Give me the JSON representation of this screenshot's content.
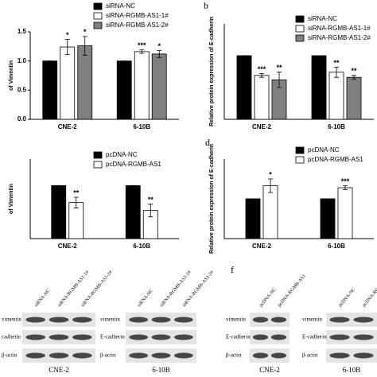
{
  "chart_data": [
    {
      "type": "bar",
      "ylabel": "of Vimentin",
      "categories": [
        "CNE-2",
        "6-10B"
      ],
      "ylim": [
        0,
        1.5
      ],
      "yticks": [
        {
          "value": 0,
          "label": "0.0"
        },
        {
          "value": 0.5,
          "label": "0.5"
        },
        {
          "value": 1,
          "label": "1.0"
        },
        {
          "value": 1.5,
          "label": "1.5"
        }
      ],
      "series": [
        {
          "name": "siRNA-NC",
          "color": "#000000",
          "values": [
            1,
            1
          ],
          "errors": [
            0,
            0
          ],
          "significance": [
            null,
            null
          ]
        },
        {
          "name": "siRNA-RGMB-AS1-1#",
          "color": "#ffffff",
          "values": [
            1.24,
            1.16
          ],
          "errors": [
            0.13,
            0.03
          ],
          "significance": [
            "*",
            "***"
          ]
        },
        {
          "name": "siRNA-RGMB-AS1-2#",
          "color": "#808080",
          "values": [
            1.26,
            1.12
          ],
          "errors": [
            0.16,
            0.06
          ],
          "significance": [
            "*",
            "*"
          ]
        }
      ]
    },
    {
      "type": "bar",
      "panel_label": "b",
      "ylabel": "Relative protein expression of E-cadherin",
      "categories": [
        "CNE-2",
        "6-10B"
      ],
      "ylim": [
        0,
        1.5
      ],
      "series": [
        {
          "name": "siRNA-NC",
          "color": "#000000",
          "values": [
            1,
            1
          ],
          "errors": [
            0,
            0
          ],
          "significance": [
            null,
            null
          ]
        },
        {
          "name": "siRNA-RGMB-AS1-1#",
          "color": "#ffffff",
          "values": [
            0.69,
            0.74
          ],
          "errors": [
            0.03,
            0.08
          ],
          "significance": [
            "***",
            "**"
          ]
        },
        {
          "name": "siRNA-RGMB-AS1-2#",
          "color": "#808080",
          "values": [
            0.62,
            0.66
          ],
          "errors": [
            0.12,
            0.03
          ],
          "significance": [
            "**",
            "**"
          ]
        }
      ]
    },
    {
      "type": "bar",
      "ylabel": "of Vimentin",
      "categories": [
        "CNE-2",
        "6-10B"
      ],
      "ylim": [
        0,
        1.5
      ],
      "series": [
        {
          "name": "pcDNA-NC",
          "color": "#000000",
          "values": [
            1,
            1
          ],
          "errors": [
            0,
            0
          ],
          "significance": [
            null,
            null
          ]
        },
        {
          "name": "pcDNA-RGMB-AS1",
          "color": "#ffffff",
          "values": [
            0.68,
            0.53
          ],
          "errors": [
            0.1,
            0.12
          ],
          "significance": [
            "**",
            "**"
          ]
        }
      ]
    },
    {
      "type": "bar",
      "panel_label": "d",
      "ylabel": "Relative protein expression of E-cadherin",
      "categories": [
        "CNE-2",
        "6-10B"
      ],
      "ylim": [
        0,
        2
      ],
      "series": [
        {
          "name": "pcDNA-NC",
          "color": "#000000",
          "values": [
            1,
            1
          ],
          "errors": [
            0,
            0
          ],
          "significance": [
            null,
            null
          ]
        },
        {
          "name": "pcDNA-RGMB-AS1",
          "color": "#ffffff",
          "values": [
            1.33,
            1.28
          ],
          "errors": [
            0.17,
            0.05
          ],
          "significance": [
            "*",
            "***"
          ]
        }
      ]
    }
  ],
  "blots": [
    {
      "groups": [
        {
          "name": "CNE-2",
          "columns": [
            "siRNA-NC",
            "siRNA-RGMB-AS1-1#",
            "siRNA-RGMB-AS1-2#"
          ],
          "rows": [
            "vimentin",
            "cadherin",
            "β-actin"
          ]
        },
        {
          "name": "6-10B",
          "columns": [
            "siRNA-NC",
            "siRNA-RGMB-AS1-1#",
            "siRNA-RGMB-AS1-2#"
          ],
          "rows": [
            "vimentin",
            "E-cadherin",
            "β-actin"
          ]
        }
      ]
    },
    {
      "panel_label": "f",
      "groups": [
        {
          "name": "CNE-2",
          "columns": [
            "pcDNA-NC",
            "pcDNA-RGMB-AS1"
          ],
          "rows": [
            "vimentin",
            "E-cadherin",
            "β-actin"
          ]
        },
        {
          "name": "6-10B",
          "columns": [
            "pcDNA-NC",
            "pcDNA-RGMB-AS1"
          ],
          "rows": [
            "vimentin",
            "E-cadherin",
            "β-actin"
          ]
        }
      ]
    }
  ]
}
